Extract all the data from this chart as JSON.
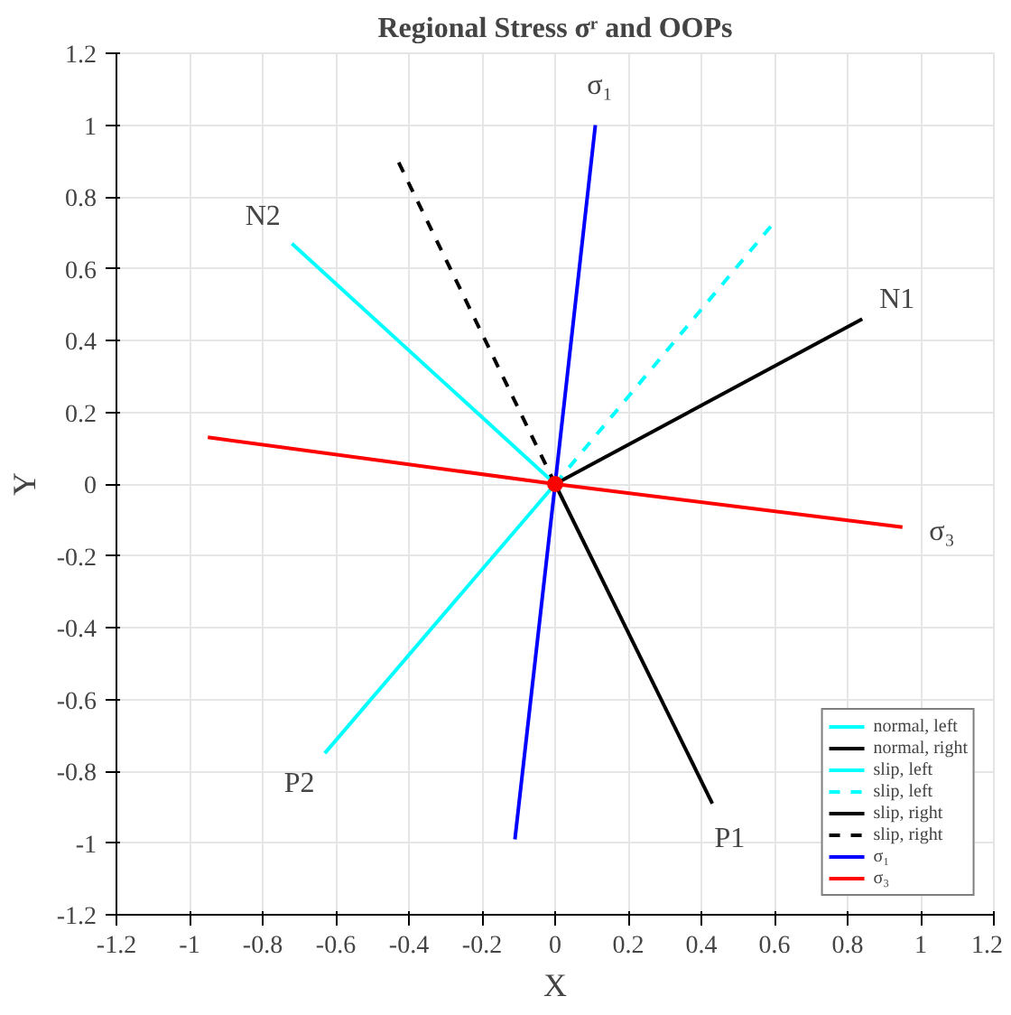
{
  "chart_data": {
    "type": "line",
    "title": "Regional Stress σʳ and OOPs",
    "xlabel": "X",
    "ylabel": "Y",
    "xlim": [
      -1.2,
      1.2
    ],
    "ylim": [
      -1.2,
      1.2
    ],
    "xticks": [
      -1.2,
      -1,
      -0.8,
      -0.6,
      -0.4,
      -0.2,
      0,
      0.2,
      0.4,
      0.6,
      0.8,
      1,
      1.2
    ],
    "yticks": [
      -1.2,
      -1,
      -0.8,
      -0.6,
      -0.4,
      -0.2,
      0,
      0.2,
      0.4,
      0.6,
      0.8,
      1,
      1.2
    ],
    "grid": true,
    "legend": "bottom right",
    "series": [
      {
        "name": "normal, left",
        "color": "#00ffff",
        "x": [
          0,
          -0.72
        ],
        "values": [
          0,
          0.67
        ],
        "line_style": "solid"
      },
      {
        "name": "normal, right",
        "color": "#000000",
        "x": [
          0,
          0.84
        ],
        "values": [
          0,
          0.46
        ],
        "line_style": "solid"
      },
      {
        "name": "slip, left",
        "color": "#00ffff",
        "x": [
          0,
          -0.63
        ],
        "values": [
          0,
          -0.75
        ],
        "line_style": "solid"
      },
      {
        "name": "slip, left",
        "color": "#00ffff",
        "x": [
          0,
          0.6
        ],
        "values": [
          0,
          0.73
        ],
        "line_style": "dashed"
      },
      {
        "name": "slip, right",
        "color": "#000000",
        "x": [
          0,
          0.43
        ],
        "values": [
          0,
          -0.89
        ],
        "line_style": "solid"
      },
      {
        "name": "slip, right",
        "color": "#000000",
        "x": [
          0,
          -0.43
        ],
        "values": [
          0,
          0.9
        ],
        "line_style": "dashed"
      },
      {
        "name": "σ₁",
        "color": "#0000ff",
        "x": [
          -0.11,
          0,
          0.11
        ],
        "values": [
          -0.99,
          0,
          1.0
        ],
        "line_style": "solid"
      },
      {
        "name": "σ₃",
        "color": "#ff0000",
        "x": [
          -0.95,
          0,
          0.95
        ],
        "values": [
          0.13,
          0,
          -0.12
        ],
        "line_style": "solid"
      },
      {
        "type": "scatter",
        "color": "#ff0000",
        "x": [
          0
        ],
        "values": [
          0
        ],
        "marker": "circle"
      }
    ],
    "annotations": [
      {
        "text": "σ₁",
        "x": 0.11,
        "y": 1.0
      },
      {
        "text": "N1",
        "x": 0.84,
        "y": 0.46
      },
      {
        "text": "N2",
        "x": -0.72,
        "y": 0.67
      },
      {
        "text": "σ₃",
        "x": 0.95,
        "y": -0.12
      },
      {
        "text": "P1",
        "x": 0.43,
        "y": -0.89
      },
      {
        "text": "P2",
        "x": -0.63,
        "y": -0.75
      }
    ]
  }
}
